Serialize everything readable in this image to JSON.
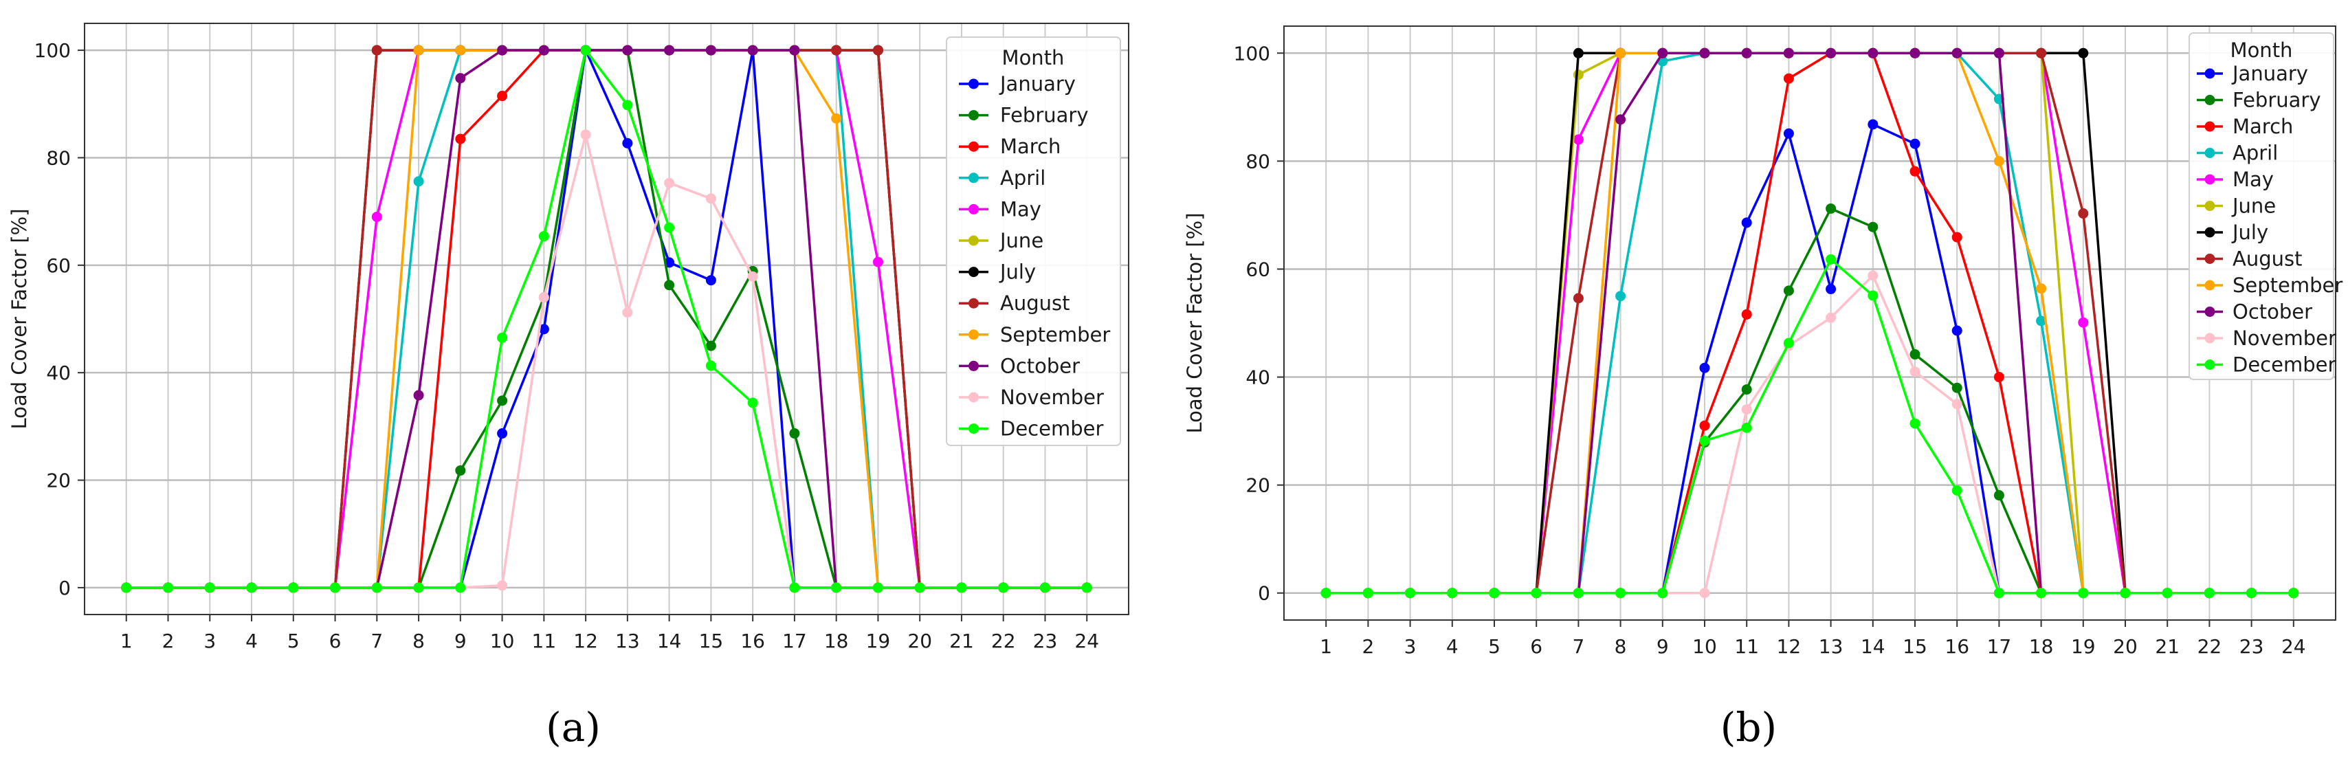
{
  "figure": {
    "captions": [
      "(a)",
      "(b)"
    ]
  },
  "chart_data": [
    {
      "type": "line",
      "title": "",
      "xlabel": "",
      "ylabel": "Load Cover Factor [%]",
      "x": [
        1,
        2,
        3,
        4,
        5,
        6,
        7,
        8,
        9,
        10,
        11,
        12,
        13,
        14,
        15,
        16,
        17,
        18,
        19,
        20,
        21,
        22,
        23,
        24
      ],
      "xlim": [
        0,
        25
      ],
      "ylim": [
        -5,
        105
      ],
      "yticks": [
        0,
        20,
        40,
        60,
        80,
        100
      ],
      "grid": true,
      "legend": {
        "title": "Month",
        "placement": "top-right"
      },
      "series": [
        {
          "name": "January",
          "color": "#0000ff",
          "values": [
            0,
            0,
            0,
            0,
            0,
            0,
            0,
            0,
            0,
            28.7,
            48.1,
            100,
            82.7,
            60.5,
            57.2,
            100,
            0,
            0,
            0,
            0,
            0,
            0,
            0,
            0
          ]
        },
        {
          "name": "February",
          "color": "#008000",
          "values": [
            0,
            0,
            0,
            0,
            0,
            0,
            0,
            0,
            21.8,
            34.8,
            54,
            100,
            100,
            56.3,
            45,
            58.9,
            28.7,
            0,
            0,
            0,
            0,
            0,
            0,
            0
          ]
        },
        {
          "name": "March",
          "color": "#ff0000",
          "values": [
            0,
            0,
            0,
            0,
            0,
            0,
            0,
            0,
            83.5,
            91.5,
            100,
            100,
            100,
            100,
            100,
            100,
            100,
            100,
            100,
            0,
            0,
            0,
            0,
            0
          ]
        },
        {
          "name": "April",
          "color": "#00bfbf",
          "values": [
            0,
            0,
            0,
            0,
            0,
            0,
            0,
            75.6,
            100,
            100,
            100,
            100,
            100,
            100,
            100,
            100,
            100,
            100,
            0,
            0,
            0,
            0,
            0,
            0
          ]
        },
        {
          "name": "May",
          "color": "#ff00ff",
          "values": [
            0,
            0,
            0,
            0,
            0,
            0,
            69,
            100,
            100,
            100,
            100,
            100,
            100,
            100,
            100,
            100,
            100,
            100,
            60.6,
            0,
            0,
            0,
            0,
            0
          ]
        },
        {
          "name": "June",
          "color": "#bfbf00",
          "values": [
            0,
            0,
            0,
            0,
            0,
            0,
            100,
            100,
            100,
            100,
            100,
            100,
            100,
            100,
            100,
            100,
            100,
            100,
            100,
            0,
            0,
            0,
            0,
            0
          ]
        },
        {
          "name": "July",
          "color": "#000000",
          "values": [
            0,
            0,
            0,
            0,
            0,
            0,
            100,
            100,
            100,
            100,
            100,
            100,
            100,
            100,
            100,
            100,
            100,
            100,
            100,
            0,
            0,
            0,
            0,
            0
          ]
        },
        {
          "name": "August",
          "color": "#b22222",
          "values": [
            0,
            0,
            0,
            0,
            0,
            0,
            100,
            100,
            100,
            100,
            100,
            100,
            100,
            100,
            100,
            100,
            100,
            100,
            100,
            0,
            0,
            0,
            0,
            0
          ]
        },
        {
          "name": "September",
          "color": "#ffa500",
          "values": [
            0,
            0,
            0,
            0,
            0,
            0,
            0,
            100,
            100,
            100,
            100,
            100,
            100,
            100,
            100,
            100,
            100,
            87.3,
            0,
            0,
            0,
            0,
            0,
            0
          ]
        },
        {
          "name": "October",
          "color": "#800080",
          "values": [
            0,
            0,
            0,
            0,
            0,
            0,
            0,
            35.8,
            94.8,
            100,
            100,
            100,
            100,
            100,
            100,
            100,
            100,
            0,
            0,
            0,
            0,
            0,
            0,
            0
          ]
        },
        {
          "name": "November",
          "color": "#ffc0cb",
          "values": [
            0,
            0,
            0,
            0,
            0,
            0,
            0,
            0,
            0,
            0.4,
            54,
            84.3,
            51.2,
            75.3,
            72.4,
            57.9,
            0,
            0,
            0,
            0,
            0,
            0,
            0,
            0
          ]
        },
        {
          "name": "December",
          "color": "#00ff00",
          "values": [
            0,
            0,
            0,
            0,
            0,
            0,
            0,
            0,
            0,
            46.5,
            65.4,
            100,
            89.8,
            67,
            41.3,
            34.4,
            0,
            0,
            0,
            0,
            0,
            0,
            0,
            0
          ]
        }
      ]
    },
    {
      "type": "line",
      "title": "",
      "xlabel": "",
      "ylabel": "Load Cover Factor [%]",
      "x": [
        1,
        2,
        3,
        4,
        5,
        6,
        7,
        8,
        9,
        10,
        11,
        12,
        13,
        14,
        15,
        16,
        17,
        18,
        19,
        20,
        21,
        22,
        23,
        24
      ],
      "xlim": [
        0,
        25
      ],
      "ylim": [
        -5,
        105
      ],
      "yticks": [
        0,
        20,
        40,
        60,
        80,
        100
      ],
      "grid": true,
      "legend": {
        "title": "Month",
        "placement": "top-right"
      },
      "series": [
        {
          "name": "January",
          "color": "#0000ff",
          "values": [
            0,
            0,
            0,
            0,
            0,
            0,
            0,
            0,
            0,
            41.7,
            68.6,
            85.1,
            56.3,
            86.8,
            83.2,
            48.6,
            0,
            0,
            0,
            0,
            0,
            0,
            0,
            0
          ]
        },
        {
          "name": "February",
          "color": "#008000",
          "values": [
            0,
            0,
            0,
            0,
            0,
            0,
            0,
            0,
            0,
            27.9,
            37.7,
            56,
            71.2,
            67.8,
            44.2,
            38,
            18.1,
            0,
            0,
            0,
            0,
            0,
            0,
            0
          ]
        },
        {
          "name": "March",
          "color": "#ff0000",
          "values": [
            0,
            0,
            0,
            0,
            0,
            0,
            0,
            0,
            0,
            31,
            51.6,
            95.3,
            100,
            100,
            78.1,
            65.9,
            40,
            0,
            0,
            0,
            0,
            0,
            0,
            0
          ]
        },
        {
          "name": "April",
          "color": "#00bfbf",
          "values": [
            0,
            0,
            0,
            0,
            0,
            0,
            0,
            55,
            98.5,
            100,
            100,
            100,
            100,
            100,
            100,
            100,
            91.5,
            50.4,
            0,
            0,
            0,
            0,
            0,
            0
          ]
        },
        {
          "name": "May",
          "color": "#ff00ff",
          "values": [
            0,
            0,
            0,
            0,
            0,
            0,
            84,
            100,
            100,
            100,
            100,
            100,
            100,
            100,
            100,
            100,
            100,
            100,
            50.1,
            0,
            0,
            0,
            0,
            0
          ]
        },
        {
          "name": "June",
          "color": "#bfbf00",
          "values": [
            0,
            0,
            0,
            0,
            0,
            0,
            96,
            100,
            100,
            100,
            100,
            100,
            100,
            100,
            100,
            100,
            100,
            100,
            0,
            0,
            0,
            0,
            0,
            0
          ]
        },
        {
          "name": "July",
          "color": "#000000",
          "values": [
            0,
            0,
            0,
            0,
            0,
            0,
            100,
            100,
            100,
            100,
            100,
            100,
            100,
            100,
            100,
            100,
            100,
            100,
            100,
            0,
            0,
            0,
            0,
            0
          ]
        },
        {
          "name": "August",
          "color": "#b22222",
          "values": [
            0,
            0,
            0,
            0,
            0,
            0,
            54.6,
            100,
            100,
            100,
            100,
            100,
            100,
            100,
            100,
            100,
            100,
            100,
            70.3,
            0,
            0,
            0,
            0,
            0
          ]
        },
        {
          "name": "September",
          "color": "#ffa500",
          "values": [
            0,
            0,
            0,
            0,
            0,
            0,
            0,
            100,
            100,
            100,
            100,
            100,
            100,
            100,
            100,
            100,
            80,
            56.4,
            0,
            0,
            0,
            0,
            0,
            0
          ]
        },
        {
          "name": "October",
          "color": "#800080",
          "values": [
            0,
            0,
            0,
            0,
            0,
            0,
            0,
            87.7,
            100,
            100,
            100,
            100,
            100,
            100,
            100,
            100,
            100,
            0,
            0,
            0,
            0,
            0,
            0,
            0
          ]
        },
        {
          "name": "November",
          "color": "#ffc0cb",
          "values": [
            0,
            0,
            0,
            0,
            0,
            0,
            0,
            0,
            0,
            0,
            34,
            45.8,
            51,
            58.8,
            41,
            35,
            0,
            0,
            0,
            0,
            0,
            0,
            0,
            0
          ]
        },
        {
          "name": "December",
          "color": "#00ff00",
          "values": [
            0,
            0,
            0,
            0,
            0,
            0,
            0,
            0,
            0,
            28.2,
            30.6,
            46.3,
            61.8,
            55.1,
            31.4,
            19,
            0,
            0,
            0,
            0,
            0,
            0,
            0,
            0
          ]
        }
      ]
    }
  ]
}
